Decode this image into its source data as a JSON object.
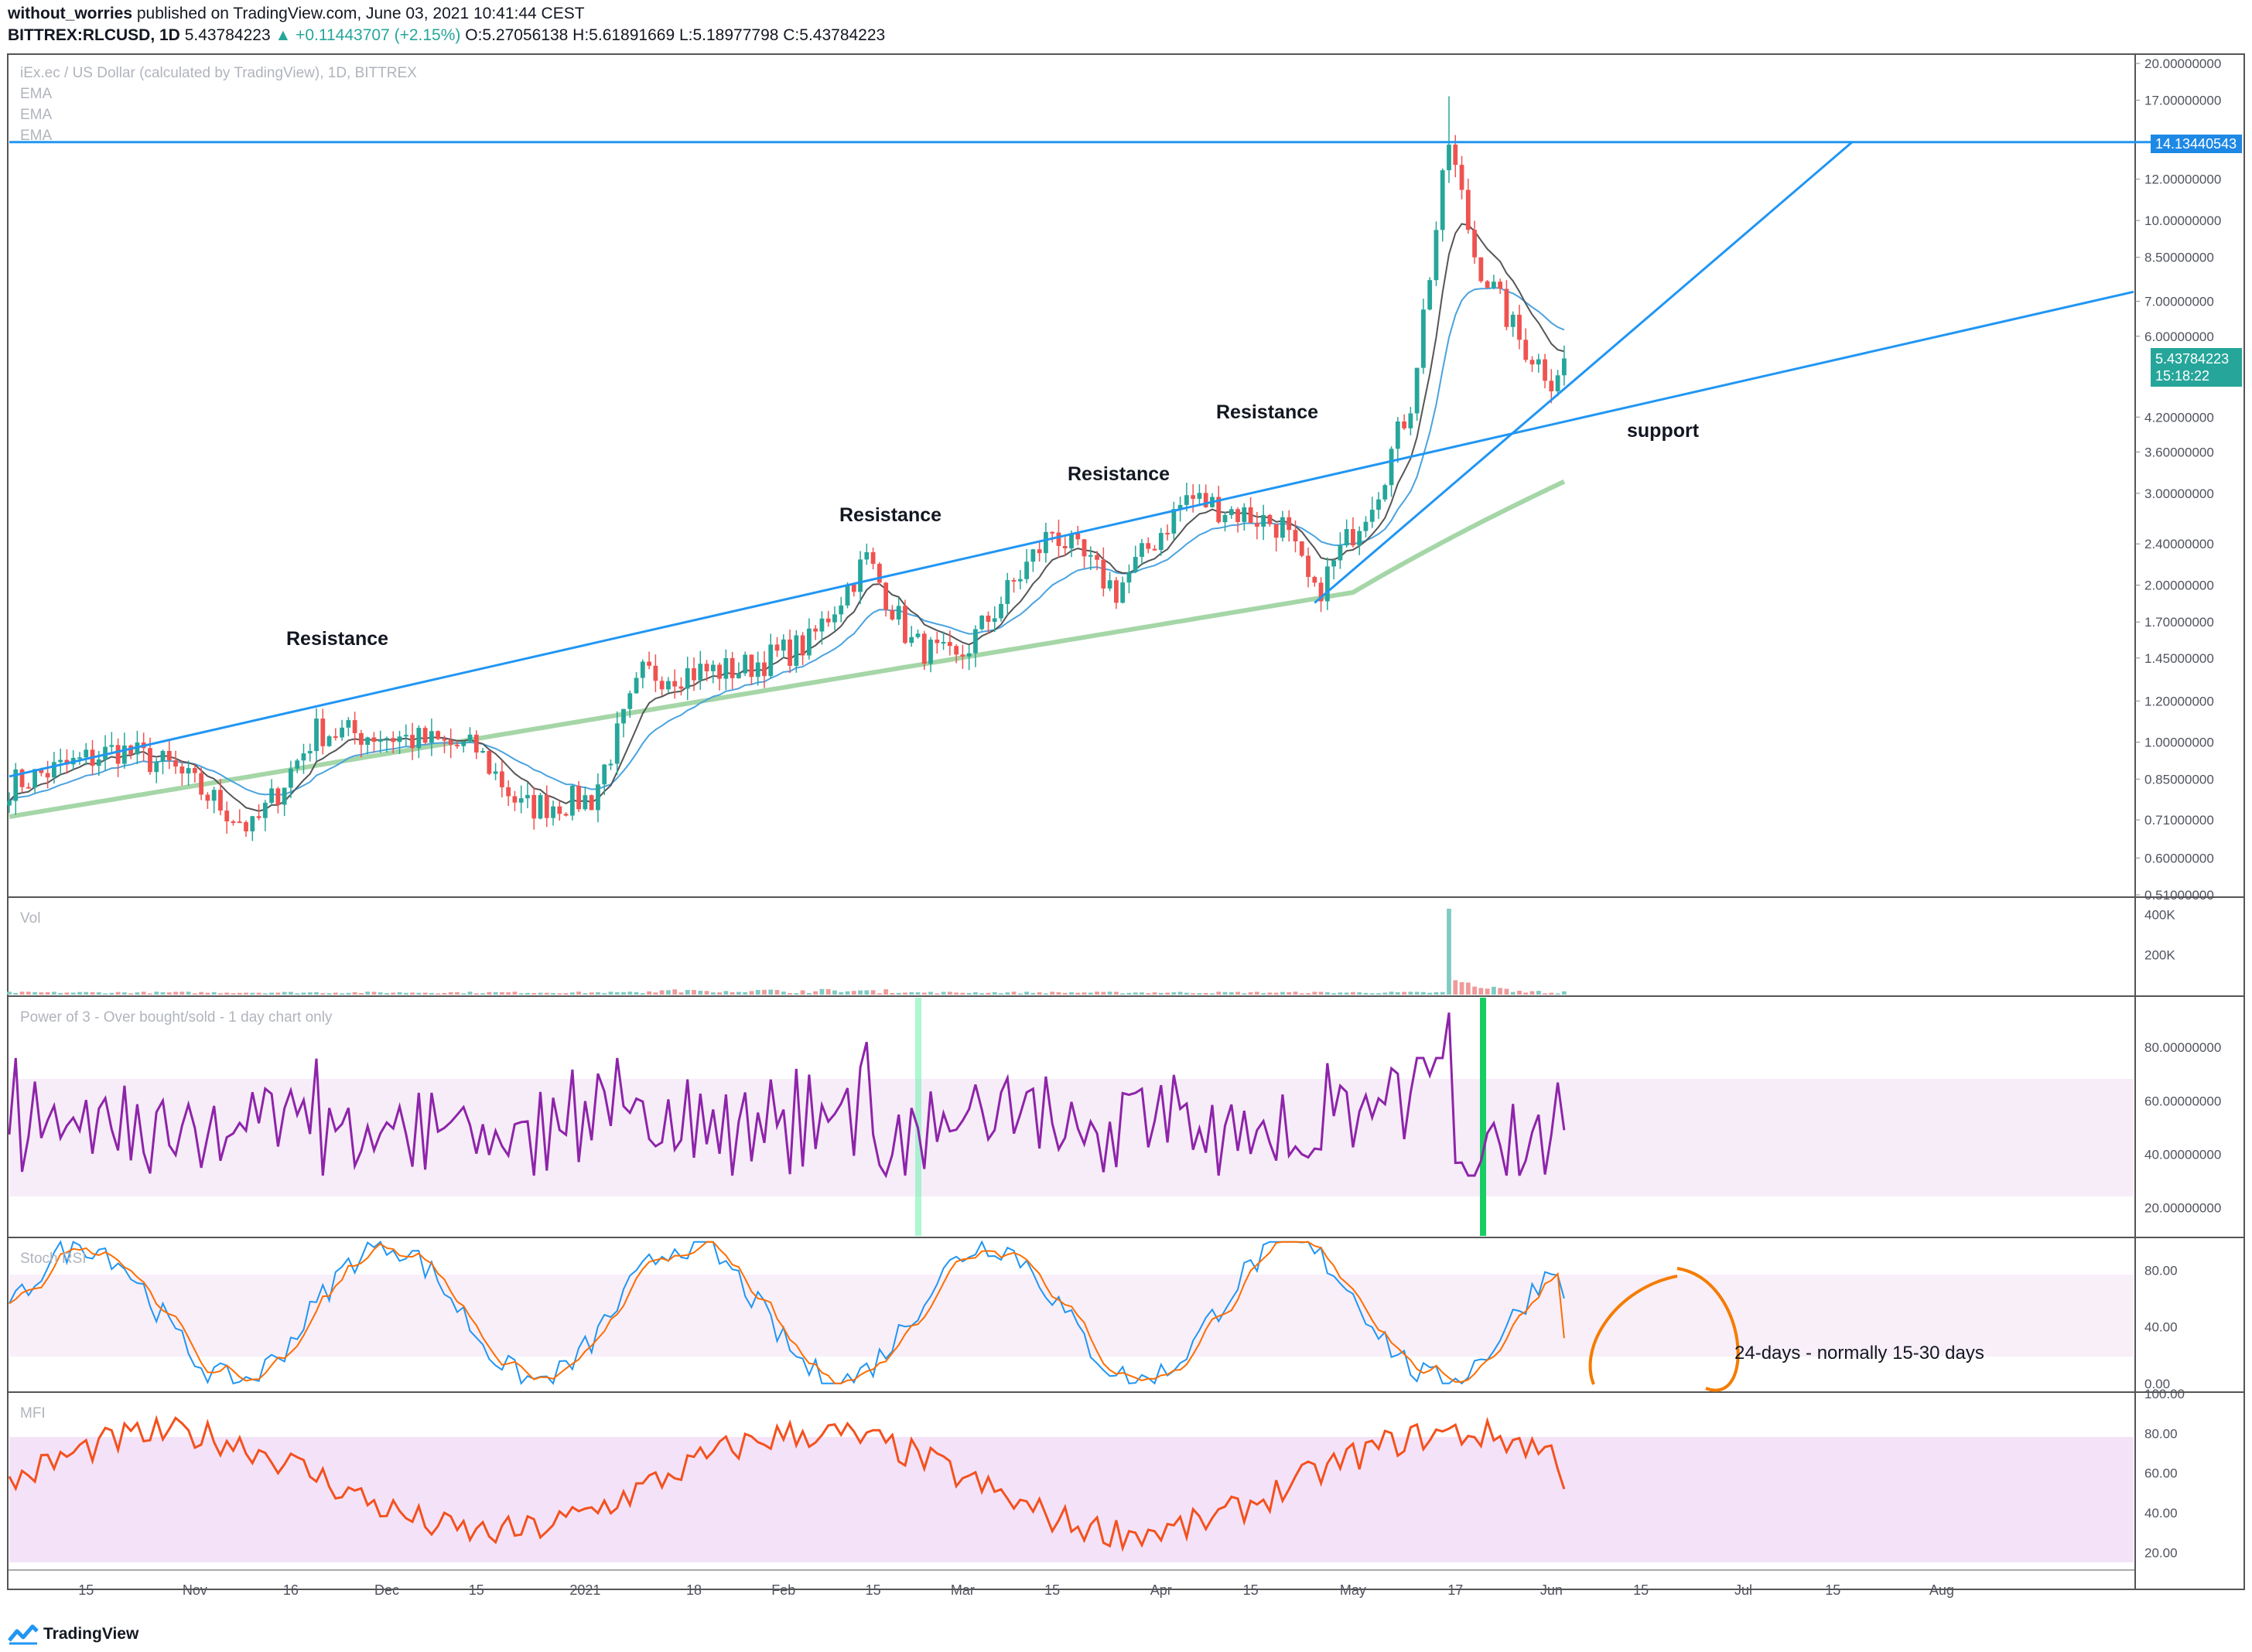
{
  "header": {
    "publisher": "without_worries",
    "published_text": "published on TradingView.com, June 03, 2021 10:41:44 CEST",
    "symbol": "BITTREX:RLCUSD, 1D",
    "last": "5.43784223",
    "change": "▲ +0.11443707 (+2.15%)",
    "ohlc": "O:5.27056138 H:5.61891669 L:5.18977798 C:5.43784223"
  },
  "legend": {
    "title": "iEx.ec / US Dollar (calculated by TradingView), 1D, BITTREX",
    "ema1": "EMA",
    "ema2": "EMA",
    "ema3": "EMA"
  },
  "price_axis": {
    "ticks": [
      "20.00000000",
      "17.00000000",
      "14.13440543",
      "12.00000000",
      "10.00000000",
      "8.50000000",
      "7.00000000",
      "6.00000000",
      "5.43784223",
      "4.20000000",
      "3.60000000",
      "3.00000000",
      "2.40000000",
      "2.00000000",
      "1.70000000",
      "1.45000000",
      "1.20000000",
      "1.00000000",
      "0.85000000",
      "0.71000000",
      "0.60000000",
      "0.51000000"
    ],
    "countdown": "15:18:22"
  },
  "date_axis": [
    "15",
    "Nov",
    "16",
    "Dec",
    "15",
    "2021",
    "18",
    "Feb",
    "15",
    "Mar",
    "15",
    "Apr",
    "15",
    "May",
    "17",
    "Jun",
    "15",
    "Jul",
    "15",
    "Aug"
  ],
  "annotations": {
    "resistance_1": "Resistance",
    "resistance_2": "Resistance",
    "resistance_3": "Resistance",
    "resistance_4": "Resistance",
    "support": "support",
    "stoch_note": "24-days - normally 15-30 days"
  },
  "panes": {
    "volume": {
      "label": "Vol",
      "ticks": [
        "400K",
        "200K"
      ]
    },
    "power3": {
      "label": "Power of 3 - Over bought/sold - 1 day chart only",
      "ticks": [
        "80.00000000",
        "60.00000000",
        "40.00000000",
        "20.00000000"
      ]
    },
    "stoch": {
      "label": "Stoch RSI",
      "ticks": [
        "80.00",
        "40.00",
        "0.00"
      ]
    },
    "mfi": {
      "label": "MFI",
      "ticks": [
        "100.00",
        "80.00",
        "60.00",
        "40.00",
        "20.00"
      ]
    }
  },
  "footer": {
    "brand": "TradingView"
  },
  "colors": {
    "up": "#26a69a",
    "down": "#ef5350",
    "trend": "#2196f3",
    "ema_short": "#555555",
    "ema_mid": "#4aa3df",
    "ema_long": "#a5d6a7",
    "power3": "#8e24aa",
    "stoch_k": "#2196f3",
    "stoch_d": "#ff6d00",
    "mfi": "#f4511e"
  },
  "chart_data": [
    {
      "type": "candlestick",
      "title": "iEx.ec / US Dollar (calculated by TradingView), 1D, BITTREX",
      "y_scale": "log",
      "ylim": [
        0.51,
        20.0
      ],
      "x_range": [
        "2020-10-03",
        "2021-08-31"
      ],
      "key_levels": {
        "horizontal_resistance": 14.13440543,
        "last_close": 5.43784223
      },
      "price_path": [
        {
          "date": "2020-10-03",
          "close": 0.83
        },
        {
          "date": "2020-10-20",
          "close": 0.97
        },
        {
          "date": "2020-10-28",
          "close": 0.9
        },
        {
          "date": "2020-11-10",
          "close": 0.68
        },
        {
          "date": "2020-11-20",
          "close": 1.05
        },
        {
          "date": "2020-12-01",
          "close": 1.03
        },
        {
          "date": "2020-12-15",
          "close": 0.97
        },
        {
          "date": "2020-12-22",
          "close": 0.75
        },
        {
          "date": "2021-01-02",
          "close": 0.78
        },
        {
          "date": "2021-01-10",
          "close": 1.35
        },
        {
          "date": "2021-01-25",
          "close": 1.38
        },
        {
          "date": "2021-02-05",
          "close": 1.55
        },
        {
          "date": "2021-02-14",
          "close": 2.25
        },
        {
          "date": "2021-02-21",
          "close": 1.55
        },
        {
          "date": "2021-02-28",
          "close": 1.42
        },
        {
          "date": "2021-03-15",
          "close": 2.55
        },
        {
          "date": "2021-03-25",
          "close": 1.95
        },
        {
          "date": "2021-04-05",
          "close": 2.95
        },
        {
          "date": "2021-04-20",
          "close": 2.6
        },
        {
          "date": "2021-04-25",
          "close": 1.9
        },
        {
          "date": "2021-05-05",
          "close": 3.1
        },
        {
          "date": "2021-05-10",
          "close": 4.5
        },
        {
          "date": "2021-05-16",
          "close": 14.13
        },
        {
          "date": "2021-05-20",
          "close": 8.6
        },
        {
          "date": "2021-05-27",
          "close": 5.9
        },
        {
          "date": "2021-06-01",
          "close": 5.0
        },
        {
          "date": "2021-06-03",
          "close": 5.44
        }
      ]
    },
    {
      "type": "bar",
      "title": "Vol",
      "ylim": [
        0,
        480000
      ],
      "peak": {
        "date": "2021-05-16",
        "value": 430000
      }
    },
    {
      "type": "line",
      "title": "Power of 3 - Over bought/sold - 1 day chart only",
      "ylim": [
        10,
        98
      ],
      "band": [
        30,
        70
      ],
      "highlights": [
        {
          "date": "2021-02-14",
          "value": 82
        },
        {
          "date": "2021-05-16",
          "value": 93
        }
      ],
      "last": 49
    },
    {
      "type": "line",
      "title": "Stoch RSI",
      "ylim": [
        -5,
        102
      ],
      "band": [
        20,
        80
      ],
      "series": [
        {
          "name": "K"
        },
        {
          "name": "D"
        }
      ],
      "last": {
        "K": 60,
        "D": 32
      }
    },
    {
      "type": "line",
      "title": "MFI",
      "ylim": [
        12,
        100
      ],
      "band": [
        20,
        80
      ],
      "last": 52
    }
  ]
}
